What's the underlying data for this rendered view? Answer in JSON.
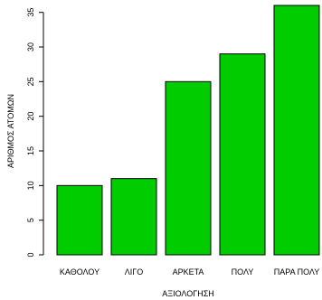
{
  "chart_data": {
    "type": "bar",
    "title": "",
    "xlabel": "ΑΞΙΟΛΟΓΗΣΗ",
    "ylabel": "ΑΡΙΘΜΟΣ ΑΤΟΜΩΝ",
    "categories": [
      "ΚΑΘΟΛΟΥ",
      "ΛΙΓΟ",
      "ΑΡΚΕΤΑ",
      "ΠΟΛΥ",
      "ΠΑΡΑ ΠΟΛΥ"
    ],
    "values": [
      10,
      11,
      25,
      29,
      36
    ],
    "ylim": [
      0,
      36
    ],
    "yticks": [
      0,
      5,
      10,
      15,
      20,
      25,
      30,
      35
    ],
    "grid": false,
    "legend": "none",
    "bar_color": "#00cc00",
    "bar_edge_color": "#000000"
  }
}
